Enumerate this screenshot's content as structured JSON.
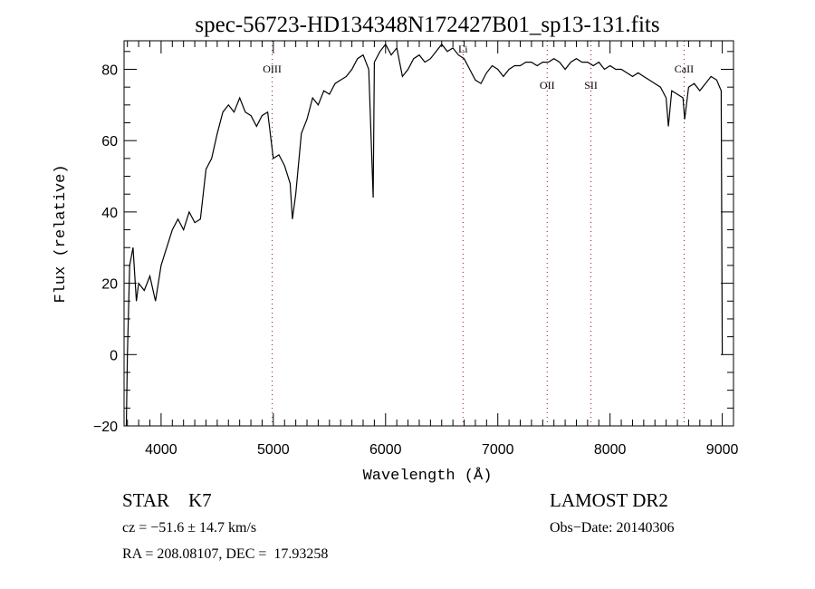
{
  "chart_data": {
    "type": "line",
    "title": "spec-56723-HD134348N172427B01_sp13-131.fits",
    "xlabel": "Wavelength (Å)",
    "ylabel": "Flux (relative)",
    "xlim": [
      3670,
      9100
    ],
    "ylim": [
      -20,
      88
    ],
    "xticks": [
      4000,
      5000,
      6000,
      7000,
      8000,
      9000
    ],
    "yticks": [
      -20,
      0,
      20,
      40,
      60,
      80
    ],
    "grid": false,
    "series": [
      {
        "name": "spectrum",
        "x": [
          3690,
          3700,
          3720,
          3750,
          3780,
          3800,
          3850,
          3900,
          3950,
          4000,
          4050,
          4100,
          4150,
          4200,
          4250,
          4300,
          4350,
          4400,
          4450,
          4500,
          4550,
          4600,
          4650,
          4700,
          4750,
          4800,
          4850,
          4900,
          4950,
          5000,
          5050,
          5100,
          5150,
          5170,
          5200,
          5250,
          5300,
          5350,
          5400,
          5450,
          5500,
          5550,
          5600,
          5650,
          5700,
          5750,
          5800,
          5850,
          5890,
          5900,
          5950,
          6000,
          6050,
          6100,
          6150,
          6200,
          6250,
          6300,
          6350,
          6400,
          6450,
          6500,
          6550,
          6600,
          6650,
          6700,
          6750,
          6800,
          6850,
          6900,
          6950,
          7000,
          7050,
          7100,
          7150,
          7200,
          7250,
          7300,
          7350,
          7400,
          7450,
          7500,
          7550,
          7600,
          7650,
          7700,
          7750,
          7800,
          7850,
          7900,
          7950,
          8000,
          8050,
          8100,
          8150,
          8200,
          8250,
          8300,
          8350,
          8400,
          8450,
          8500,
          8520,
          8550,
          8600,
          8650,
          8665,
          8700,
          8750,
          8800,
          8850,
          8900,
          8950,
          8990,
          9000
        ],
        "y": [
          -20,
          0,
          25,
          30,
          15,
          20,
          18,
          22,
          15,
          25,
          30,
          35,
          38,
          35,
          40,
          37,
          38,
          52,
          55,
          62,
          68,
          70,
          68,
          72,
          68,
          67,
          64,
          67,
          68,
          55,
          56,
          53,
          48,
          38,
          45,
          62,
          66,
          72,
          70,
          74,
          73,
          76,
          77,
          78,
          80,
          83,
          84,
          80,
          44,
          82,
          85,
          87,
          84,
          86,
          78,
          80,
          83,
          84,
          82,
          83,
          85,
          87,
          85,
          86,
          84,
          83,
          80,
          77,
          76,
          79,
          81,
          80,
          78,
          80,
          81,
          81,
          82,
          82,
          81,
          82,
          82,
          83,
          82,
          80,
          82,
          83,
          82,
          82,
          81,
          82,
          80,
          81,
          80,
          80,
          79,
          78,
          79,
          78,
          77,
          76,
          75,
          72,
          64,
          74,
          73,
          72,
          66,
          75,
          76,
          74,
          76,
          78,
          77,
          74,
          0
        ]
      }
    ],
    "line_markers": [
      {
        "label": "OIII",
        "x": 4990
      },
      {
        "label": "Li",
        "x": 6690
      },
      {
        "label": "OII",
        "x": 7440
      },
      {
        "label": "SII",
        "x": 7830
      },
      {
        "label": "CaII",
        "x": 8660
      }
    ]
  },
  "info": {
    "object_class": "STAR    K7",
    "redshift": "cz = −51.6 ± 14.7 km/s",
    "coords": "RA = 208.08107, DEC =  17.93258",
    "survey": "LAMOST DR2",
    "obs_date": "Obs−Date: 20140306"
  }
}
